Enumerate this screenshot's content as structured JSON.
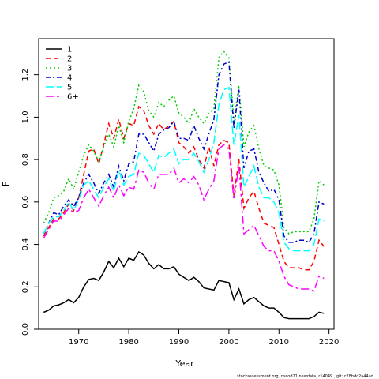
{
  "chart_data": {
    "type": "line",
    "title": "",
    "xlabel": "Year",
    "ylabel": "F",
    "xlim": [
      1962,
      2021
    ],
    "ylim": [
      0,
      1.37
    ],
    "xticks": [
      1970,
      1980,
      1990,
      2000,
      2010,
      2020
    ],
    "yticks": [
      0.0,
      0.2,
      0.4,
      0.6,
      0.8,
      1.0,
      1.2
    ],
    "ytick_labels": [
      "0.0",
      "0.2",
      "0.4",
      "0.6",
      "0.8",
      "1.0",
      "1.2"
    ],
    "legend_position": "top-left",
    "x": [
      1963,
      1964,
      1965,
      1966,
      1967,
      1968,
      1969,
      1970,
      1971,
      1972,
      1973,
      1974,
      1975,
      1976,
      1977,
      1978,
      1979,
      1980,
      1981,
      1982,
      1983,
      1984,
      1985,
      1986,
      1987,
      1988,
      1989,
      1990,
      1991,
      1992,
      1993,
      1994,
      1995,
      1996,
      1997,
      1998,
      1999,
      2000,
      2001,
      2002,
      2003,
      2004,
      2005,
      2006,
      2007,
      2008,
      2009,
      2010,
      2011,
      2012,
      2013,
      2014,
      2015,
      2016,
      2017,
      2018,
      2019
    ],
    "series": [
      {
        "name": "1",
        "color": "#000000",
        "dash": "solid",
        "values": [
          0.08,
          0.09,
          0.11,
          0.115,
          0.125,
          0.14,
          0.125,
          0.15,
          0.2,
          0.235,
          0.24,
          0.23,
          0.27,
          0.32,
          0.29,
          0.335,
          0.295,
          0.335,
          0.325,
          0.365,
          0.35,
          0.31,
          0.285,
          0.305,
          0.285,
          0.285,
          0.295,
          0.26,
          0.245,
          0.23,
          0.245,
          0.225,
          0.195,
          0.19,
          0.185,
          0.23,
          0.225,
          0.22,
          0.14,
          0.19,
          0.12,
          0.14,
          0.15,
          0.13,
          0.11,
          0.1,
          0.1,
          0.08,
          0.055,
          0.05,
          0.05,
          0.05,
          0.05,
          0.05,
          0.06,
          0.08,
          0.075
        ]
      },
      {
        "name": "2",
        "color": "#ff0000",
        "dash": "6,4",
        "values": [
          0.44,
          0.48,
          0.52,
          0.52,
          0.55,
          0.59,
          0.56,
          0.62,
          0.73,
          0.84,
          0.85,
          0.78,
          0.87,
          0.97,
          0.9,
          0.99,
          0.9,
          0.97,
          0.96,
          1.05,
          1.03,
          0.96,
          0.92,
          0.97,
          0.94,
          0.96,
          0.98,
          0.88,
          0.86,
          0.83,
          0.86,
          0.8,
          0.76,
          0.86,
          0.77,
          0.87,
          0.89,
          0.88,
          0.63,
          0.8,
          0.57,
          0.62,
          0.65,
          0.57,
          0.5,
          0.49,
          0.48,
          0.4,
          0.32,
          0.29,
          0.29,
          0.29,
          0.28,
          0.28,
          0.32,
          0.42,
          0.39
        ]
      },
      {
        "name": "3",
        "color": "#00cd00",
        "dash": "2,3",
        "values": [
          0.5,
          0.55,
          0.62,
          0.63,
          0.65,
          0.71,
          0.66,
          0.74,
          0.82,
          0.87,
          0.84,
          0.79,
          0.86,
          0.92,
          0.86,
          0.96,
          0.88,
          0.98,
          1.04,
          1.15,
          1.12,
          1.03,
          1.0,
          1.07,
          1.05,
          1.08,
          1.1,
          1.02,
          1.0,
          0.97,
          1.04,
          1.0,
          0.97,
          1.02,
          1.04,
          1.28,
          1.31,
          1.28,
          0.98,
          1.15,
          0.86,
          0.93,
          0.96,
          0.85,
          0.77,
          0.76,
          0.75,
          0.68,
          0.48,
          0.45,
          0.46,
          0.46,
          0.46,
          0.46,
          0.52,
          0.7,
          0.68
        ]
      },
      {
        "name": "4",
        "color": "#0000cd",
        "dash": "6,3,2,3",
        "values": [
          0.45,
          0.5,
          0.55,
          0.54,
          0.58,
          0.61,
          0.58,
          0.62,
          0.69,
          0.73,
          0.69,
          0.64,
          0.69,
          0.73,
          0.67,
          0.77,
          0.7,
          0.78,
          0.79,
          0.92,
          0.92,
          0.88,
          0.84,
          0.92,
          0.94,
          0.95,
          0.98,
          0.9,
          0.9,
          0.89,
          0.96,
          0.9,
          0.85,
          0.92,
          0.99,
          1.2,
          1.25,
          1.26,
          0.95,
          1.13,
          0.76,
          0.84,
          0.85,
          0.74,
          0.69,
          0.65,
          0.66,
          0.61,
          0.44,
          0.41,
          0.41,
          0.42,
          0.42,
          0.41,
          0.45,
          0.6,
          0.59
        ]
      },
      {
        "name": "5",
        "color": "#00ffff",
        "dash": "10,4",
        "values": [
          0.45,
          0.5,
          0.53,
          0.53,
          0.56,
          0.6,
          0.56,
          0.61,
          0.68,
          0.7,
          0.66,
          0.62,
          0.67,
          0.71,
          0.65,
          0.75,
          0.68,
          0.72,
          0.73,
          0.83,
          0.82,
          0.78,
          0.74,
          0.82,
          0.81,
          0.83,
          0.85,
          0.78,
          0.8,
          0.8,
          0.83,
          0.79,
          0.74,
          0.8,
          0.88,
          1.06,
          1.13,
          1.14,
          0.87,
          1.01,
          0.67,
          0.72,
          0.77,
          0.67,
          0.62,
          0.62,
          0.6,
          0.55,
          0.41,
          0.38,
          0.37,
          0.37,
          0.37,
          0.37,
          0.4,
          0.52,
          0.51
        ]
      },
      {
        "name": "6+",
        "color": "#ff00ff",
        "dash": "10,4,3,4",
        "values": [
          0.43,
          0.47,
          0.51,
          0.51,
          0.54,
          0.57,
          0.55,
          0.56,
          0.62,
          0.66,
          0.62,
          0.58,
          0.63,
          0.67,
          0.62,
          0.68,
          0.63,
          0.67,
          0.66,
          0.75,
          0.74,
          0.69,
          0.66,
          0.73,
          0.73,
          0.73,
          0.76,
          0.69,
          0.71,
          0.69,
          0.72,
          0.68,
          0.61,
          0.66,
          0.7,
          0.85,
          0.87,
          0.85,
          0.61,
          0.77,
          0.45,
          0.47,
          0.49,
          0.44,
          0.39,
          0.37,
          0.37,
          0.32,
          0.25,
          0.21,
          0.2,
          0.19,
          0.19,
          0.19,
          0.18,
          0.25,
          0.24
        ]
      }
    ]
  },
  "footer": "stockassessment.org, nscod21 newdata, r14049 , git: c28bdc2a44ad"
}
